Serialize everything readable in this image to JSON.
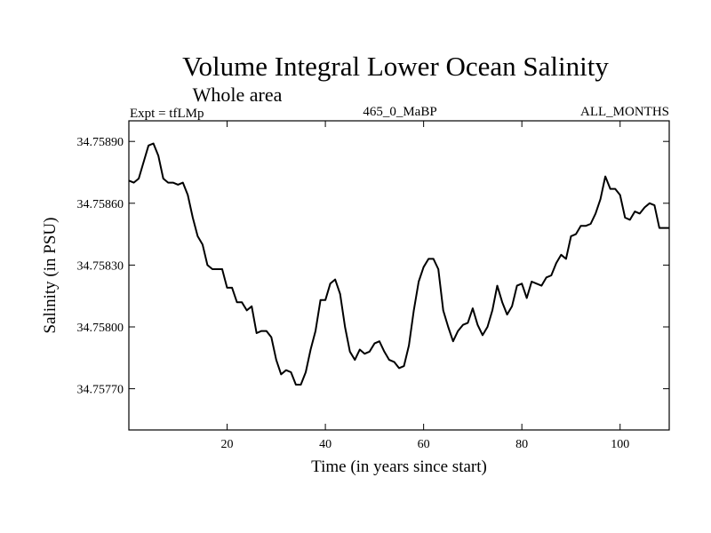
{
  "chart_data": {
    "type": "line",
    "title": "Volume Integral Lower Ocean Salinity",
    "subtitle": "Whole area",
    "left_label": "Expt = tfLMp",
    "center_label": "465_0_MaBP",
    "right_label": "ALL_MONTHS",
    "xlabel": "Time (in years since start)",
    "ylabel": "Salinity (in PSU)",
    "xlim": [
      0,
      110
    ],
    "ylim": [
      34.7575,
      34.759
    ],
    "x_ticks": [
      20,
      40,
      60,
      80,
      100
    ],
    "x_tick_labels": [
      "20",
      "40",
      "60",
      "80",
      "100"
    ],
    "y_ticks": [
      34.7577,
      34.758,
      34.7583,
      34.7586,
      34.7589
    ],
    "y_tick_labels": [
      "34.75770",
      "34.75800",
      "34.75830",
      "34.75860",
      "34.75890"
    ],
    "series": [
      {
        "name": "Salinity",
        "color": "#000000",
        "x": [
          0,
          1,
          2,
          3,
          4,
          5,
          6,
          7,
          8,
          9,
          10,
          11,
          12,
          13,
          14,
          15,
          16,
          17,
          18,
          19,
          20,
          21,
          22,
          23,
          24,
          25,
          26,
          27,
          28,
          29,
          30,
          31,
          32,
          33,
          34,
          35,
          36,
          37,
          38,
          39,
          40,
          41,
          42,
          43,
          44,
          45,
          46,
          47,
          48,
          49,
          50,
          51,
          52,
          53,
          54,
          55,
          56,
          57,
          58,
          59,
          60,
          61,
          62,
          63,
          64,
          65,
          66,
          67,
          68,
          69,
          70,
          71,
          72,
          73,
          74,
          75,
          76,
          77,
          78,
          79,
          80,
          81,
          82,
          83,
          84,
          85,
          86,
          87,
          88,
          89,
          90,
          91,
          92,
          93,
          94,
          95,
          96,
          97,
          98,
          99,
          100,
          101,
          102,
          103,
          104,
          105,
          106,
          107,
          108,
          109,
          110
        ],
        "values": [
          34.75871,
          34.7587,
          34.75872,
          34.7588,
          34.75888,
          34.75889,
          34.75883,
          34.75872,
          34.7587,
          34.7587,
          34.75869,
          34.7587,
          34.75864,
          34.75853,
          34.75844,
          34.7584,
          34.7583,
          34.75828,
          34.75828,
          34.75828,
          34.75819,
          34.75819,
          34.75812,
          34.75812,
          34.75808,
          34.7581,
          34.75797,
          34.75798,
          34.75798,
          34.75795,
          34.75784,
          34.75777,
          34.75779,
          34.75778,
          34.75772,
          34.75772,
          34.75778,
          34.75789,
          34.75798,
          34.75813,
          34.75813,
          34.75821,
          34.75823,
          34.75816,
          34.758,
          34.75788,
          34.75784,
          34.75789,
          34.75787,
          34.75788,
          34.75792,
          34.75793,
          34.75788,
          34.75784,
          34.75783,
          34.7578,
          34.75781,
          34.75791,
          34.75808,
          34.75822,
          34.75829,
          34.75833,
          34.75833,
          34.75828,
          34.75808,
          34.758,
          34.75793,
          34.75798,
          34.75801,
          34.75802,
          34.75809,
          34.75801,
          34.75796,
          34.758,
          34.75808,
          34.7582,
          34.75812,
          34.75806,
          34.7581,
          34.7582,
          34.75821,
          34.75814,
          34.75822,
          34.75821,
          34.7582,
          34.75824,
          34.75825,
          34.75831,
          34.75835,
          34.75833,
          34.75844,
          34.75845,
          34.75849,
          34.75849,
          34.7585,
          34.75855,
          34.75862,
          34.75873,
          34.75867,
          34.75867,
          34.75864,
          34.75853,
          34.75852,
          34.75856,
          34.75855,
          34.75858,
          34.7586,
          34.75859,
          34.75848,
          34.75848,
          34.75848
        ]
      }
    ]
  }
}
